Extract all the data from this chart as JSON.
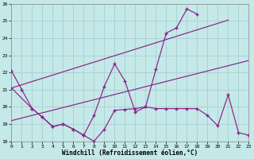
{
  "background_color": "#c5e8e8",
  "grid_color": "#a0cccc",
  "line_color": "#882288",
  "xlabel": "Windchill (Refroidissement éolien,°C)",
  "xlim_min": 0,
  "xlim_max": 23,
  "ylim_min": 18,
  "ylim_max": 26,
  "xticks": [
    0,
    1,
    2,
    3,
    4,
    5,
    6,
    7,
    8,
    9,
    10,
    11,
    12,
    13,
    14,
    15,
    16,
    17,
    18,
    19,
    20,
    21,
    22,
    23
  ],
  "yticks": [
    18,
    19,
    20,
    21,
    22,
    23,
    24,
    25,
    26
  ],
  "series1_x": [
    0,
    1,
    2,
    3,
    4,
    5,
    6,
    7,
    8,
    9,
    10,
    11,
    12,
    13,
    14,
    15,
    16,
    17,
    18
  ],
  "series1_y": [
    22.1,
    21.0,
    19.9,
    19.4,
    18.85,
    19.0,
    18.7,
    18.35,
    19.5,
    21.2,
    22.5,
    21.5,
    19.7,
    20.0,
    22.2,
    24.3,
    24.6,
    25.7,
    25.4
  ],
  "series2_x": [
    0,
    2,
    3,
    4,
    5,
    6,
    7,
    8,
    9,
    10,
    11,
    12,
    13,
    14,
    15,
    16,
    17,
    18,
    19,
    20,
    21,
    22,
    23
  ],
  "series2_y": [
    21.1,
    19.9,
    19.4,
    18.85,
    19.0,
    18.7,
    18.35,
    18.0,
    18.7,
    19.8,
    19.85,
    19.9,
    20.0,
    19.9,
    19.9,
    19.9,
    19.9,
    19.9,
    19.5,
    18.9,
    20.7,
    18.5,
    18.35
  ],
  "trend1_x": [
    0,
    21
  ],
  "trend1_y": [
    21.1,
    25.05
  ],
  "trend2_x": [
    0,
    23
  ],
  "trend2_y": [
    19.2,
    22.7
  ]
}
